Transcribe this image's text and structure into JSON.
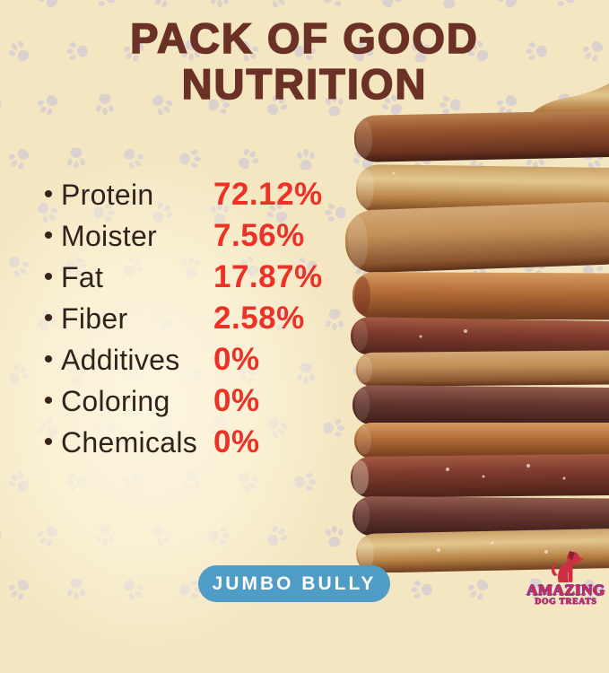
{
  "title": {
    "line1": "PACK OF GOOD",
    "line2": "NUTRITION"
  },
  "nutrition": {
    "bullet_glyph": "•",
    "items": [
      {
        "label": "Protein",
        "value": "72.12%"
      },
      {
        "label": "Moister",
        "value": "7.56%"
      },
      {
        "label": "Fat",
        "value": "17.87%"
      },
      {
        "label": "Fiber",
        "value": "2.58%"
      },
      {
        "label": "Additives",
        "value": "0%"
      },
      {
        "label": "Coloring",
        "value": "0%"
      },
      {
        "label": "Chemicals",
        "value": "0%"
      }
    ]
  },
  "badge": {
    "label": "JUMBO BULLY"
  },
  "logo": {
    "brand": "AMAZING",
    "tagline": "DOG TREATS",
    "icon": "sitting-dog-icon"
  },
  "photo": {
    "alt": "Stack of jumbo bully stick dog treats"
  },
  "colors": {
    "background_cream": "#f3e6c0",
    "paw_lavender": "#ccc5d9",
    "title_brown": "#6b3126",
    "label_dark": "#33211b",
    "accent_red": "#ee3126",
    "badge_blue": "#4f9dc7",
    "badge_text": "#ffffff",
    "logo_red": "#cc3340",
    "logo_purple": "#8833aa"
  }
}
